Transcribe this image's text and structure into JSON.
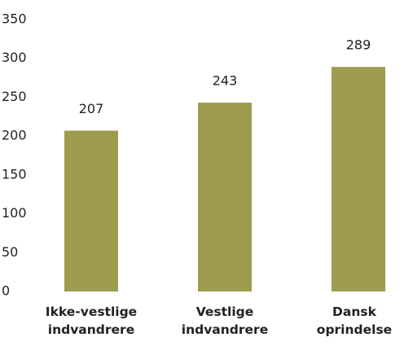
{
  "chart_data": {
    "type": "bar",
    "categories": [
      "Ikke-vestlige indvandrere",
      "Vestlige indvandrere",
      "Dansk oprindelse"
    ],
    "values": [
      207,
      243,
      289
    ],
    "color": "#9c9b4e",
    "ylim": [
      0,
      350
    ],
    "yticks": [
      0,
      50,
      100,
      150,
      200,
      250,
      300,
      350
    ],
    "grid": false
  }
}
